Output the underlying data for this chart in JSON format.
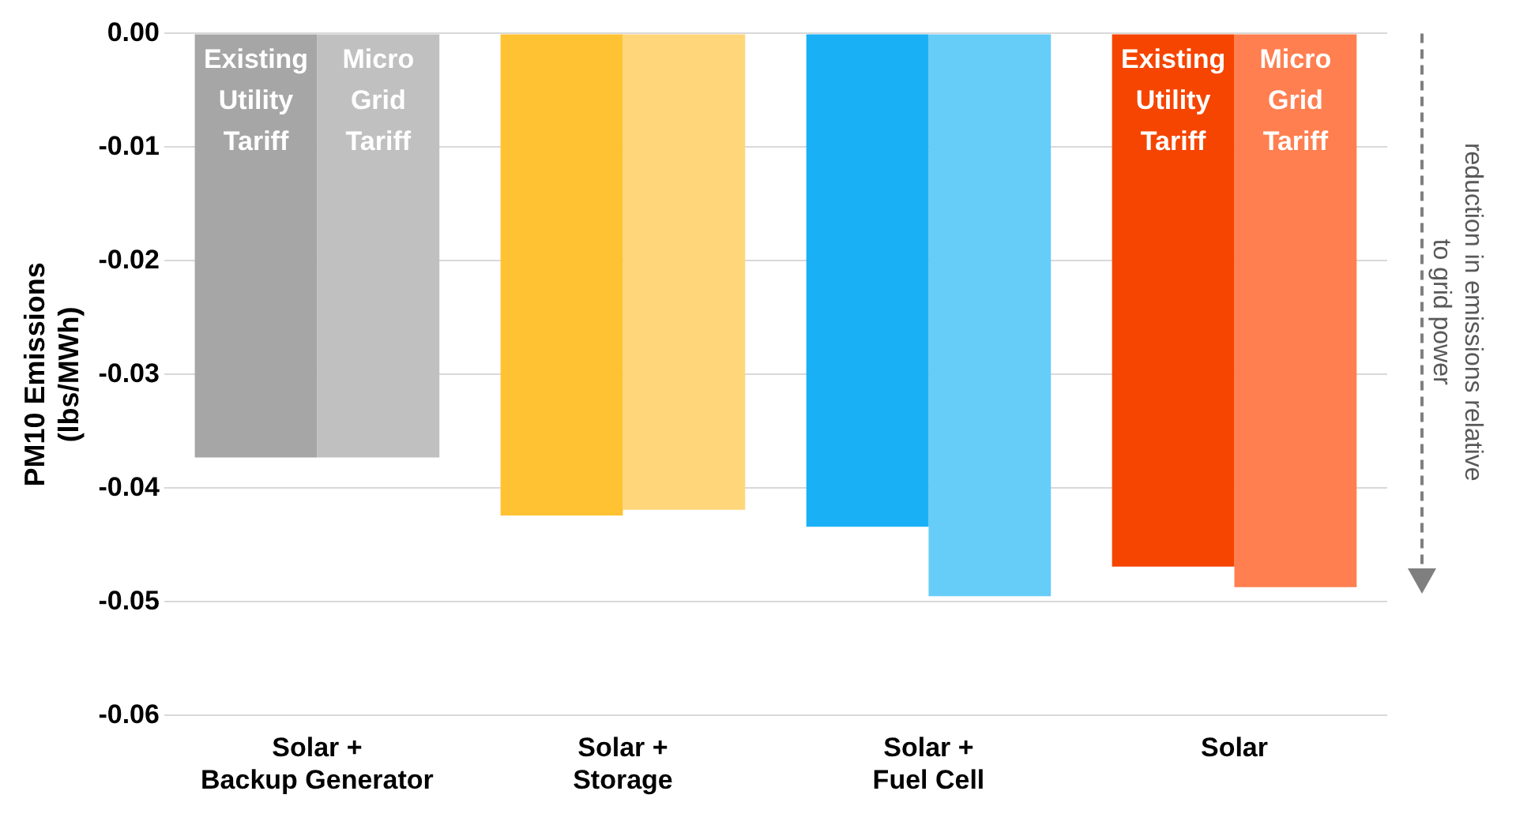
{
  "chart_data": {
    "type": "bar",
    "ylabel": "PM10 Emissions\n(lbs/MWh)",
    "categories": [
      "Solar +\nBackup Generator",
      "Solar +\nStorage",
      "Solar +\nFuel Cell",
      "Solar"
    ],
    "series": [
      {
        "name": "Existing Utility Tariff",
        "colors": [
          "#a6a6a6",
          "#ffc233",
          "#1ab0f5",
          "#f54500"
        ],
        "values": [
          -0.0373,
          -0.0424,
          -0.0434,
          -0.0469
        ]
      },
      {
        "name": "Micro Grid Tariff",
        "colors": [
          "#c0c0c0",
          "#ffd67a",
          "#66ccf8",
          "#ff7f50"
        ],
        "values": [
          -0.0373,
          -0.0419,
          -0.0495,
          -0.0487
        ]
      }
    ],
    "ylim": [
      -0.06,
      0
    ],
    "yticks": [
      {
        "value": 0,
        "label": "0.00"
      },
      {
        "value": -0.01,
        "label": "-0.01"
      },
      {
        "value": -0.02,
        "label": "-0.02"
      },
      {
        "value": -0.03,
        "label": "-0.03"
      },
      {
        "value": -0.04,
        "label": "-0.04"
      },
      {
        "value": -0.05,
        "label": "-0.05"
      },
      {
        "value": -0.06,
        "label": "-0.06"
      }
    ],
    "grid": "y",
    "legend": false,
    "annotations": [
      "reduction in emissions relative to grid power"
    ]
  }
}
